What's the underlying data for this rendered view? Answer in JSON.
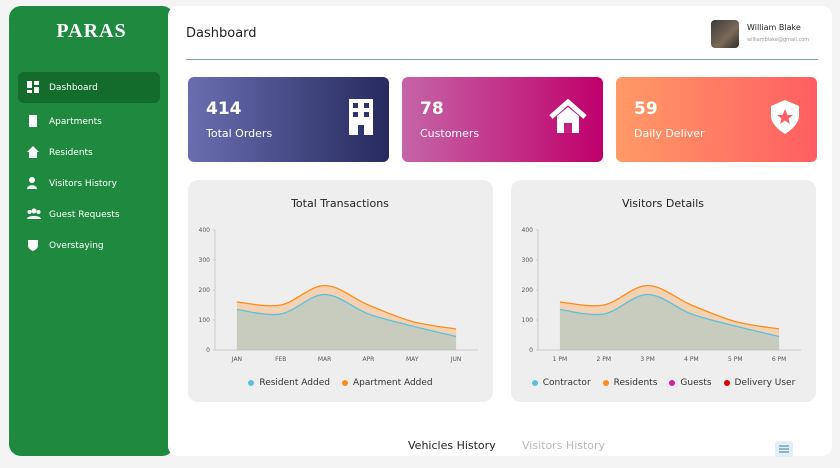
{
  "sidebar": {
    "brand": "PARAS",
    "menu": [
      "Dashboard",
      "Apartments",
      "Residents",
      "Visitors History",
      "Guest Requests",
      "Overstaying"
    ]
  },
  "header": {
    "title": "Dashboard",
    "user_name": "William Blake",
    "user_email": "williamblake@gmail.com"
  },
  "cards": [
    {
      "value": 414,
      "label": "Total Orders"
    },
    {
      "value": 78,
      "label": "Customers"
    },
    {
      "value": 59,
      "label": "Daily Deliver"
    }
  ],
  "chart_data": [
    {
      "type": "area",
      "title": "Total Transactions",
      "categories": [
        "JAN",
        "FEB",
        "MAR",
        "APR",
        "MAY",
        "JUN"
      ],
      "series": [
        {
          "name": "Resident Added",
          "color": "#5bc0de",
          "values": [
            135,
            120,
            185,
            120,
            80,
            45
          ]
        },
        {
          "name": "Apartment Added",
          "color": "#ff8c1a",
          "values": [
            160,
            150,
            215,
            150,
            95,
            70
          ]
        }
      ],
      "ylim": [
        0,
        400
      ],
      "yticks": [
        0,
        100,
        200,
        300,
        400
      ]
    },
    {
      "type": "area",
      "title": "Visitors Details",
      "categories": [
        "1 PM",
        "2 PM",
        "3 PM",
        "4 PM",
        "5 PM",
        "6 PM"
      ],
      "series": [
        {
          "name": "Contractor",
          "color": "#5bc0de",
          "values": [
            135,
            120,
            185,
            120,
            80,
            45
          ]
        },
        {
          "name": "Residents",
          "color": "#ff8c1a",
          "values": [
            160,
            150,
            215,
            150,
            95,
            70
          ]
        },
        {
          "name": "Guests",
          "color": "#d21fa6",
          "values": [
            null,
            null,
            null,
            null,
            null,
            null
          ]
        },
        {
          "name": "Delivery User",
          "color": "#e00000",
          "values": [
            null,
            null,
            null,
            null,
            null,
            null
          ]
        }
      ],
      "ylim": [
        0,
        400
      ],
      "yticks": [
        0,
        100,
        200,
        300,
        400
      ]
    }
  ],
  "tabs": [
    "Vehicles History",
    "Visitors History"
  ]
}
